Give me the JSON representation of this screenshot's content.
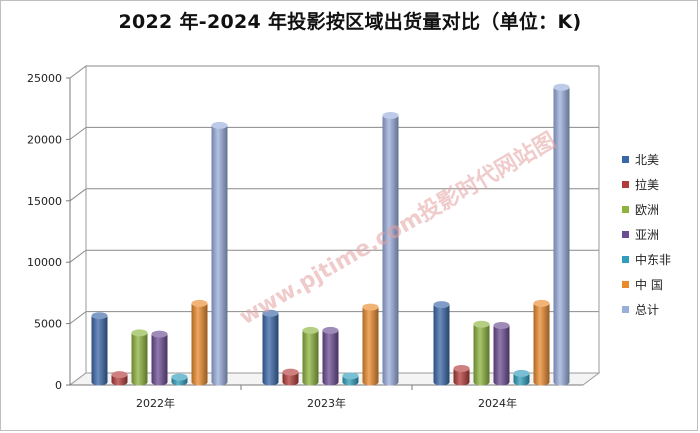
{
  "chart_data": {
    "type": "bar",
    "title": "2022 年-2024 年投影按区域出货量对比（单位：K)",
    "categories": [
      "2022年",
      "2023年",
      "2024年"
    ],
    "series": [
      {
        "name": "北美",
        "values": [
          5400,
          5600,
          6300
        ],
        "color": "#3A67A8"
      },
      {
        "name": "拉美",
        "values": [
          600,
          800,
          1100
        ],
        "color": "#B23C3A"
      },
      {
        "name": "欧洲",
        "values": [
          4000,
          4200,
          4700
        ],
        "color": "#8CB33E"
      },
      {
        "name": "亚洲",
        "values": [
          3900,
          4200,
          4600
        ],
        "color": "#6C4C92"
      },
      {
        "name": "中东非",
        "values": [
          400,
          500,
          700
        ],
        "color": "#2F9DBB"
      },
      {
        "name": "中 国",
        "values": [
          6400,
          6100,
          6400
        ],
        "color": "#E98A2C"
      },
      {
        "name": "总计",
        "values": [
          20900,
          21700,
          24000
        ],
        "color": "#9AAEDC"
      }
    ],
    "yticks": [
      "0",
      "5000",
      "10000",
      "15000",
      "20000",
      "25000"
    ],
    "ylim": [
      0,
      25000
    ],
    "grid": true,
    "legend": "right"
  },
  "watermark": "www.pjtime.com投影时代网站图"
}
